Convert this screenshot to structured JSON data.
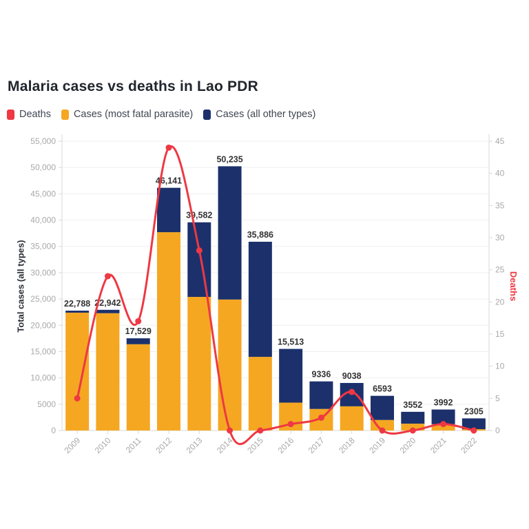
{
  "title": "Malaria cases vs deaths in Lao PDR",
  "legend": {
    "items": [
      {
        "label": "Deaths",
        "color": "#ee3843"
      },
      {
        "label": "Cases (most fatal parasite)",
        "color": "#f5a722"
      },
      {
        "label": "Cases (all other types)",
        "color": "#1c316b"
      }
    ]
  },
  "chart_data": {
    "type": "bar+line",
    "title": "Malaria cases vs deaths in Lao PDR",
    "categories": [
      "2009",
      "2010",
      "2011",
      "2012",
      "2013",
      "2014",
      "2015",
      "2016",
      "2017",
      "2018",
      "2019",
      "2020",
      "2021",
      "2022"
    ],
    "series": [
      {
        "name": "Cases (most fatal parasite)",
        "type": "bar",
        "stack": "cases",
        "color": "#f5a722",
        "values": [
          22400,
          22300,
          16400,
          37700,
          25400,
          24900,
          14000,
          5300,
          4100,
          4600,
          2000,
          1300,
          1200,
          250
        ]
      },
      {
        "name": "Cases (all other types)",
        "type": "bar",
        "stack": "cases",
        "color": "#1c316b",
        "values": [
          388,
          642,
          1129,
          8441,
          14182,
          25335,
          21886,
          10213,
          5236,
          4438,
          4593,
          2252,
          2792,
          2055
        ]
      },
      {
        "name": "Deaths",
        "type": "line",
        "axis": "right",
        "color": "#ee3843",
        "marker_radius": 4.5,
        "values": [
          5,
          24,
          17,
          44,
          28,
          0,
          0,
          1,
          2,
          6,
          0,
          0,
          1,
          0
        ]
      }
    ],
    "bar_totals": [
      22788,
      22942,
      17529,
      46141,
      39582,
      50235,
      35886,
      15513,
      9336,
      9038,
      6593,
      3552,
      3992,
      2305
    ],
    "bar_total_labels": [
      "22,788",
      "22,942",
      "17,529",
      "46,141",
      "39,582",
      "50,235",
      "35,886",
      "15,513",
      "9336",
      "9038",
      "6593",
      "3552",
      "3992",
      "2305"
    ],
    "left_axis": {
      "label": "Total cases (all types)",
      "min": 0,
      "max": 55000,
      "tick_step": 5000,
      "tick_labels": [
        "0",
        "5000",
        "10,000",
        "15,000",
        "20,000",
        "25,000",
        "30,000",
        "35,000",
        "40,000",
        "45,000",
        "50,000",
        "55,000"
      ]
    },
    "right_axis": {
      "label": "Deaths",
      "min": 0,
      "max": 45,
      "tick_step": 5,
      "tick_labels": [
        "0",
        "5",
        "10",
        "15",
        "20",
        "25",
        "30",
        "35",
        "40",
        "45"
      ]
    },
    "grid": "horizontal",
    "legend_position": "top-left",
    "colors": {
      "grid_line": "#efefef",
      "axis_line": "#d9d9d9",
      "tick_text": "#a8a8a8",
      "bar_label_text": "#333333",
      "title_text": "#21252d"
    }
  }
}
